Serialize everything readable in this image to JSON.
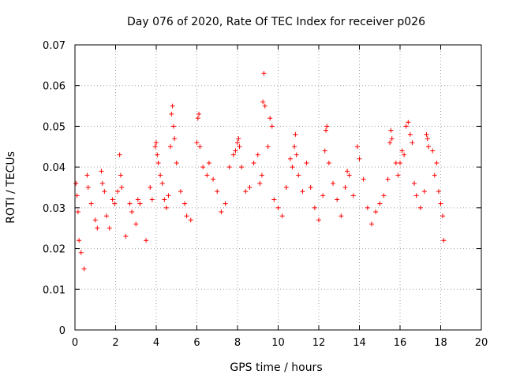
{
  "chart_data": {
    "type": "scatter",
    "title": "Day 076 of 2020, Rate Of TEC Index for receiver p026",
    "xlabel": "GPS time / hours",
    "ylabel": "ROTI / TECUs",
    "xlim": [
      0,
      20
    ],
    "ylim": [
      0,
      0.07
    ],
    "x_ticks": [
      0,
      2,
      4,
      6,
      8,
      10,
      12,
      14,
      16,
      18,
      20
    ],
    "x_tick_labels": [
      "0",
      "2",
      "4",
      "6",
      "8",
      "10",
      "12",
      "14",
      "16",
      "18",
      "20"
    ],
    "y_ticks": [
      0,
      0.01,
      0.02,
      0.03,
      0.04,
      0.05,
      0.06,
      0.07
    ],
    "y_tick_labels": [
      "0",
      "0.01",
      "0.02",
      "0.03",
      "0.04",
      "0.05",
      "0.06",
      "0.07"
    ],
    "grid": true,
    "marker": "+",
    "series": [
      {
        "name": "ROTI",
        "color": "#ff0000",
        "points": [
          [
            0.05,
            0.036
          ],
          [
            0.1,
            0.033
          ],
          [
            0.15,
            0.029
          ],
          [
            0.2,
            0.022
          ],
          [
            0.3,
            0.019
          ],
          [
            0.45,
            0.015
          ],
          [
            0.6,
            0.038
          ],
          [
            0.65,
            0.035
          ],
          [
            0.8,
            0.031
          ],
          [
            1.0,
            0.027
          ],
          [
            1.1,
            0.025
          ],
          [
            1.3,
            0.039
          ],
          [
            1.35,
            0.036
          ],
          [
            1.45,
            0.034
          ],
          [
            1.55,
            0.028
          ],
          [
            1.7,
            0.025
          ],
          [
            1.85,
            0.032
          ],
          [
            1.95,
            0.031
          ],
          [
            2.1,
            0.034
          ],
          [
            2.2,
            0.043
          ],
          [
            2.25,
            0.038
          ],
          [
            2.3,
            0.035
          ],
          [
            2.5,
            0.023
          ],
          [
            2.7,
            0.031
          ],
          [
            2.8,
            0.029
          ],
          [
            3.0,
            0.026
          ],
          [
            3.1,
            0.032
          ],
          [
            3.2,
            0.031
          ],
          [
            3.5,
            0.022
          ],
          [
            3.7,
            0.035
          ],
          [
            3.8,
            0.032
          ],
          [
            3.95,
            0.045
          ],
          [
            4.0,
            0.046
          ],
          [
            4.05,
            0.043
          ],
          [
            4.1,
            0.041
          ],
          [
            4.2,
            0.038
          ],
          [
            4.3,
            0.036
          ],
          [
            4.4,
            0.032
          ],
          [
            4.5,
            0.03
          ],
          [
            4.6,
            0.033
          ],
          [
            4.7,
            0.045
          ],
          [
            4.75,
            0.053
          ],
          [
            4.8,
            0.055
          ],
          [
            4.85,
            0.05
          ],
          [
            4.9,
            0.047
          ],
          [
            5.0,
            0.041
          ],
          [
            5.2,
            0.034
          ],
          [
            5.4,
            0.031
          ],
          [
            5.5,
            0.028
          ],
          [
            5.7,
            0.027
          ],
          [
            6.0,
            0.046
          ],
          [
            6.05,
            0.052
          ],
          [
            6.1,
            0.053
          ],
          [
            6.15,
            0.045
          ],
          [
            6.3,
            0.04
          ],
          [
            6.5,
            0.038
          ],
          [
            6.6,
            0.041
          ],
          [
            6.8,
            0.037
          ],
          [
            7.0,
            0.034
          ],
          [
            7.2,
            0.029
          ],
          [
            7.4,
            0.031
          ],
          [
            7.6,
            0.04
          ],
          [
            7.8,
            0.043
          ],
          [
            7.9,
            0.044
          ],
          [
            8.0,
            0.046
          ],
          [
            8.05,
            0.047
          ],
          [
            8.1,
            0.045
          ],
          [
            8.2,
            0.04
          ],
          [
            8.4,
            0.034
          ],
          [
            8.6,
            0.035
          ],
          [
            8.8,
            0.041
          ],
          [
            9.0,
            0.043
          ],
          [
            9.1,
            0.036
          ],
          [
            9.2,
            0.038
          ],
          [
            9.25,
            0.056
          ],
          [
            9.3,
            0.063
          ],
          [
            9.35,
            0.055
          ],
          [
            9.5,
            0.045
          ],
          [
            9.6,
            0.052
          ],
          [
            9.7,
            0.05
          ],
          [
            9.8,
            0.032
          ],
          [
            10.0,
            0.03
          ],
          [
            10.2,
            0.028
          ],
          [
            10.4,
            0.035
          ],
          [
            10.6,
            0.042
          ],
          [
            10.7,
            0.04
          ],
          [
            10.8,
            0.045
          ],
          [
            10.85,
            0.048
          ],
          [
            10.9,
            0.043
          ],
          [
            11.0,
            0.038
          ],
          [
            11.2,
            0.034
          ],
          [
            11.4,
            0.041
          ],
          [
            11.6,
            0.035
          ],
          [
            11.8,
            0.03
          ],
          [
            12.0,
            0.027
          ],
          [
            12.2,
            0.033
          ],
          [
            12.3,
            0.044
          ],
          [
            12.35,
            0.049
          ],
          [
            12.4,
            0.05
          ],
          [
            12.5,
            0.041
          ],
          [
            12.7,
            0.036
          ],
          [
            12.9,
            0.032
          ],
          [
            13.1,
            0.028
          ],
          [
            13.3,
            0.035
          ],
          [
            13.4,
            0.039
          ],
          [
            13.5,
            0.038
          ],
          [
            13.7,
            0.033
          ],
          [
            13.9,
            0.045
          ],
          [
            14.0,
            0.042
          ],
          [
            14.2,
            0.037
          ],
          [
            14.4,
            0.03
          ],
          [
            14.6,
            0.026
          ],
          [
            14.8,
            0.029
          ],
          [
            15.0,
            0.031
          ],
          [
            15.2,
            0.033
          ],
          [
            15.4,
            0.037
          ],
          [
            15.5,
            0.046
          ],
          [
            15.55,
            0.049
          ],
          [
            15.6,
            0.047
          ],
          [
            15.8,
            0.041
          ],
          [
            15.9,
            0.038
          ],
          [
            16.0,
            0.041
          ],
          [
            16.1,
            0.044
          ],
          [
            16.2,
            0.043
          ],
          [
            16.3,
            0.05
          ],
          [
            16.4,
            0.051
          ],
          [
            16.5,
            0.048
          ],
          [
            16.6,
            0.046
          ],
          [
            16.7,
            0.036
          ],
          [
            16.8,
            0.033
          ],
          [
            17.0,
            0.03
          ],
          [
            17.2,
            0.034
          ],
          [
            17.3,
            0.048
          ],
          [
            17.35,
            0.047
          ],
          [
            17.4,
            0.045
          ],
          [
            17.6,
            0.044
          ],
          [
            17.7,
            0.038
          ],
          [
            17.8,
            0.041
          ],
          [
            17.9,
            0.034
          ],
          [
            18.0,
            0.031
          ],
          [
            18.1,
            0.028
          ],
          [
            18.15,
            0.022
          ]
        ]
      }
    ]
  }
}
